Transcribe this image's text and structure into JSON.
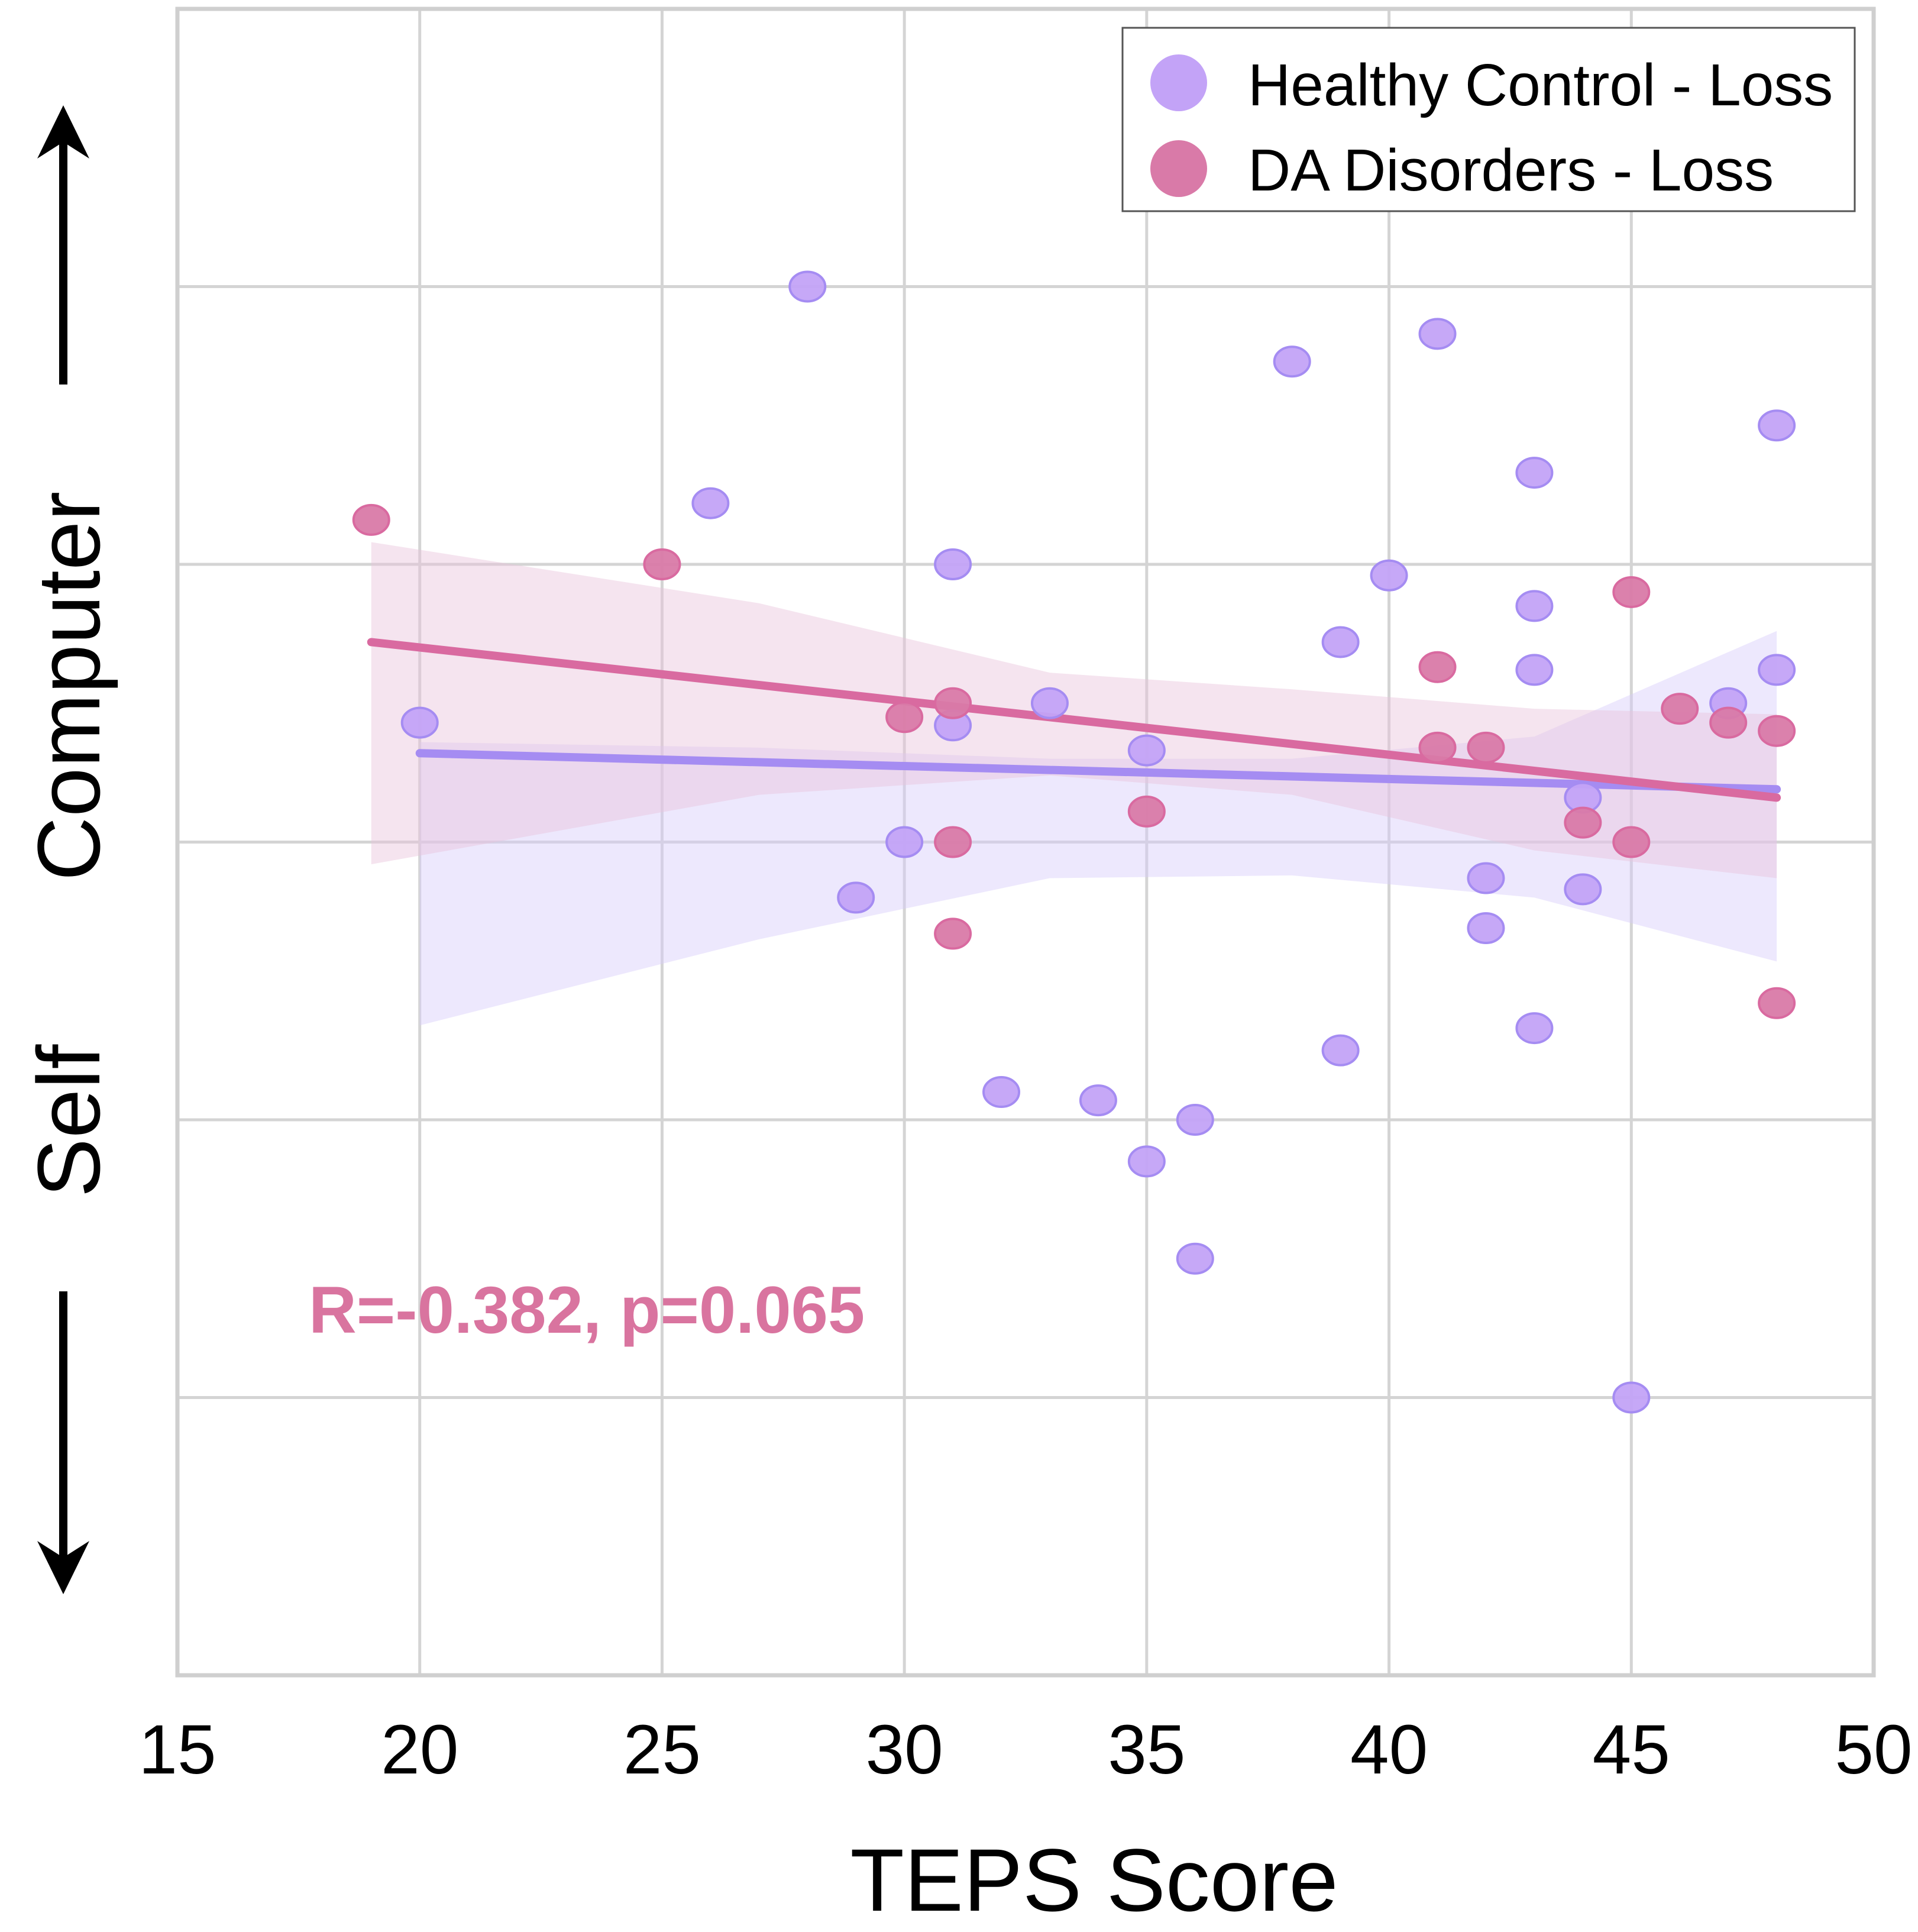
{
  "chart_data": {
    "type": "scatter",
    "title": "",
    "xlabel": "TEPS Score",
    "ylabel_top": "Computer",
    "ylabel_bottom": "Self",
    "xlim": [
      15,
      50
    ],
    "ylim": [
      -3,
      3
    ],
    "x_ticks": [
      15,
      20,
      25,
      30,
      35,
      40,
      45,
      50
    ],
    "x_tick_labels": [
      "15",
      "20",
      "25",
      "30",
      "35",
      "40",
      "45",
      "50"
    ],
    "y_gridlines": [
      -2,
      -1,
      0,
      1,
      2
    ],
    "grid": true,
    "legend_position": "top-right",
    "annotation": {
      "text": "R=-0.382, p=0.065",
      "color": "#d9749f"
    },
    "series": [
      {
        "name": "Healthy Control - Loss",
        "color": "#c3a3f7",
        "line_color": "#a58cf2",
        "band_color": "#d6ccfa",
        "points": [
          [
            28,
            2.0
          ],
          [
            26,
            1.22
          ],
          [
            31,
            1.0
          ],
          [
            20,
            0.43
          ],
          [
            31,
            0.42
          ],
          [
            33,
            0.5
          ],
          [
            35,
            0.33
          ],
          [
            30,
            0.0
          ],
          [
            29,
            -0.2
          ],
          [
            32,
            -0.9
          ],
          [
            34,
            -0.93
          ],
          [
            36,
            -1.0
          ],
          [
            35,
            -1.15
          ],
          [
            36,
            -1.5
          ],
          [
            38,
            1.73
          ],
          [
            41,
            1.83
          ],
          [
            40,
            0.96
          ],
          [
            39,
            0.72
          ],
          [
            39,
            -0.75
          ],
          [
            42,
            -0.13
          ],
          [
            42,
            -0.31
          ],
          [
            43,
            1.33
          ],
          [
            43,
            0.85
          ],
          [
            43,
            0.62
          ],
          [
            43,
            -0.67
          ],
          [
            44,
            0.16
          ],
          [
            44,
            -0.17
          ],
          [
            45,
            -2.0
          ],
          [
            47,
            0.5
          ],
          [
            48,
            1.5
          ],
          [
            48,
            0.62
          ]
        ],
        "fit_line": [
          [
            20,
            0.32
          ],
          [
            48,
            0.19
          ]
        ],
        "band": [
          [
            20,
            0.36,
            -0.66
          ],
          [
            27,
            0.34,
            -0.35
          ],
          [
            33,
            0.3,
            -0.13
          ],
          [
            38,
            0.3,
            -0.12
          ],
          [
            43,
            0.38,
            -0.2
          ],
          [
            48,
            0.76,
            -0.43
          ]
        ]
      },
      {
        "name": "DA Disorders - Loss",
        "color": "#d97aa8",
        "line_color": "#d96aa0",
        "band_color": "#e9c3dc",
        "points": [
          [
            19,
            1.16
          ],
          [
            25,
            1.0
          ],
          [
            30,
            0.45
          ],
          [
            31,
            0.5
          ],
          [
            31,
            0.0
          ],
          [
            31,
            -0.33
          ],
          [
            35,
            0.11
          ],
          [
            41,
            0.63
          ],
          [
            41,
            0.34
          ],
          [
            42,
            0.34
          ],
          [
            44,
            0.07
          ],
          [
            45,
            0.9
          ],
          [
            45,
            0.0
          ],
          [
            46,
            0.48
          ],
          [
            47,
            0.43
          ],
          [
            48,
            0.4
          ],
          [
            48,
            -0.58
          ]
        ],
        "fit_line": [
          [
            19,
            0.72
          ],
          [
            48,
            0.16
          ]
        ],
        "band": [
          [
            19,
            1.08,
            -0.08
          ],
          [
            27,
            0.86,
            0.17
          ],
          [
            33,
            0.61,
            0.24
          ],
          [
            38,
            0.55,
            0.17
          ],
          [
            43,
            0.48,
            -0.03
          ],
          [
            48,
            0.46,
            -0.13
          ]
        ]
      }
    ]
  }
}
